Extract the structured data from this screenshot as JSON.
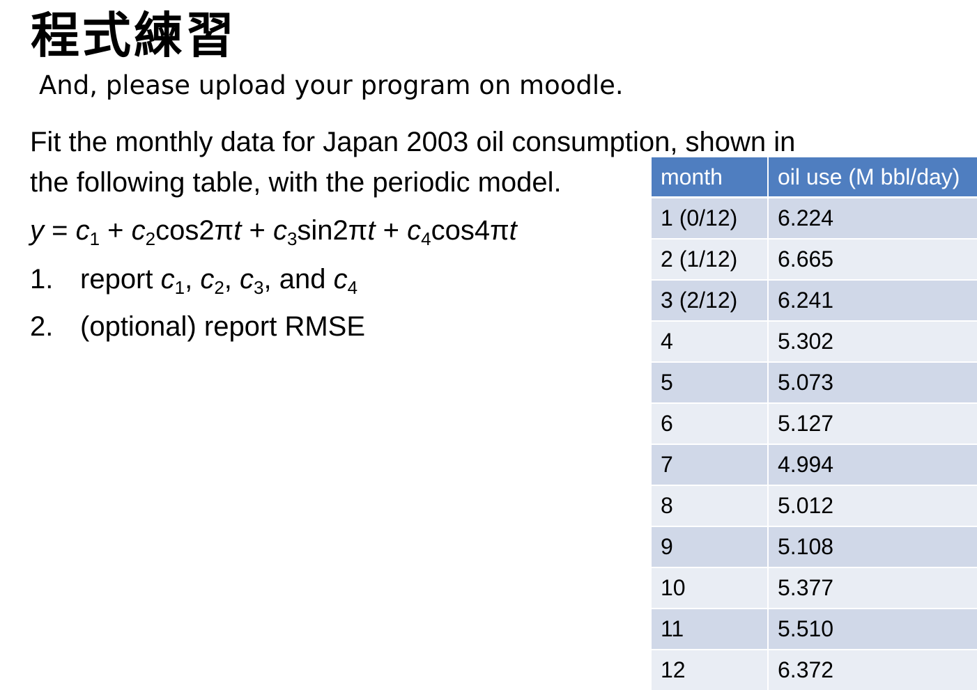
{
  "slide": {
    "title": "程式練習",
    "subtitle": "And, please upload your program on moodle."
  },
  "problem": {
    "line1": "Fit the monthly data for Japan 2003 oil consumption, shown in",
    "line2": "the following table, with the periodic model."
  },
  "formula": {
    "y": "y",
    "eq": " = ",
    "c": "c",
    "s1": "1",
    "plus1": " + ",
    "s2": "2",
    "term2": "cos2π",
    "t": "t",
    "plus2": " + ",
    "s3": "3",
    "term3": "sin2π",
    "plus3": " + ",
    "s4": "4",
    "term4": "cos4π"
  },
  "tasks": [
    {
      "number": "1.",
      "prefix": "report ",
      "c": "c",
      "s1": "1",
      "sep1": ", ",
      "s2": "2",
      "sep2": ", ",
      "s3": "3",
      "sep3": ", and ",
      "s4": "4"
    },
    {
      "number": "2.",
      "text": "(optional) report RMSE"
    }
  ],
  "table": {
    "headers": [
      "month",
      "oil use (M bbl/day)"
    ],
    "rows": [
      [
        "1 (0/12)",
        "6.224"
      ],
      [
        "2 (1/12)",
        "6.665"
      ],
      [
        "3 (2/12)",
        "6.241"
      ],
      [
        "4",
        "5.302"
      ],
      [
        "5",
        "5.073"
      ],
      [
        "6",
        "5.127"
      ],
      [
        "7",
        "4.994"
      ],
      [
        "8",
        "5.012"
      ],
      [
        "9",
        "5.108"
      ],
      [
        "10",
        "5.377"
      ],
      [
        "11",
        "5.510"
      ],
      [
        "12",
        "6.372"
      ]
    ]
  },
  "colors": {
    "header_blue": "#4f7ec0",
    "row_band_dark": "#d0d8e8",
    "row_band_light": "#e9edf4"
  }
}
